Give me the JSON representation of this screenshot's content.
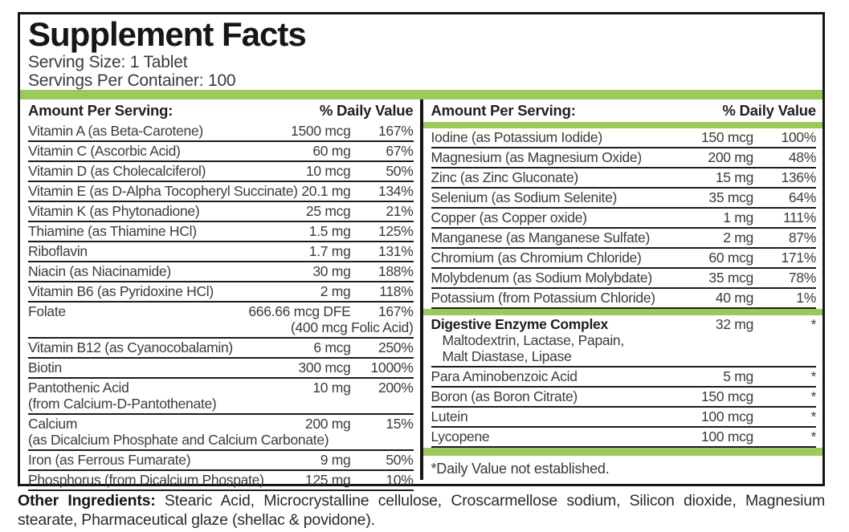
{
  "title": "Supplement Facts",
  "serving": {
    "size": "Serving Size: 1 Tablet",
    "per_container": "Servings Per Container: 100"
  },
  "table": {
    "left_header": {
      "amount": "Amount Per Serving:",
      "dv": "% Daily Value"
    },
    "right_header": {
      "amount": "Amount Per Serving:",
      "dv": "% Daily Value"
    },
    "left_rows": [
      {
        "name": "Vitamin A (as Beta-Carotene)",
        "amount": "1500 mcg",
        "dv": "167%"
      },
      {
        "name": "Vitamin C (Ascorbic Acid)",
        "amount": "60 mg",
        "dv": "67%"
      },
      {
        "name": "Vitamin D (as Cholecalciferol)",
        "amount": "10 mcg",
        "dv": "50%"
      },
      {
        "name": "Vitamin E (as D-Alpha Tocopheryl Succinate)",
        "amount": "20.1 mg",
        "dv": "134%"
      },
      {
        "name": "Vitamin K (as Phytonadione)",
        "amount": "25 mcg",
        "dv": "21%"
      },
      {
        "name": "Thiamine (as Thiamine HCl)",
        "amount": "1.5 mg",
        "dv": "125%"
      },
      {
        "name": "Riboflavin",
        "amount": "1.7 mg",
        "dv": "131%"
      },
      {
        "name": "Niacin (as Niacinamide)",
        "amount": "30 mg",
        "dv": "188%"
      },
      {
        "name": "Vitamin B6 (as Pyridoxine HCl)",
        "amount": "2 mg",
        "dv": "118%"
      },
      {
        "name": "Folate",
        "amount": "666.66 mcg DFE",
        "dv": "167%",
        "amount2": "(400 mcg Folic Acid)"
      },
      {
        "name": "Vitamin B12 (as Cyanocobalamin)",
        "amount": "6 mcg",
        "dv": "250%"
      },
      {
        "name": "Biotin",
        "amount": "300 mcg",
        "dv": "1000%"
      },
      {
        "name": "Pantothenic Acid",
        "amount": "10 mg",
        "dv": "200%",
        "name2": "(from Calcium-D-Pantothenate)"
      },
      {
        "name": "Calcium",
        "amount": "200 mg",
        "dv": "15%",
        "name2": "(as Dicalcium Phosphate and Calcium Carbonate)"
      },
      {
        "name": "Iron (as Ferrous Fumarate)",
        "amount": "9 mg",
        "dv": "50%"
      },
      {
        "name": "Phosphorus (from Dicalcium Phospate)",
        "amount": "125 mg",
        "dv": "10%"
      }
    ],
    "right_rows": [
      {
        "name": "Iodine (as Potassium Iodide)",
        "amount": "150 mcg",
        "dv": "100%"
      },
      {
        "name": "Magnesium (as Magnesium Oxide)",
        "amount": "200 mg",
        "dv": "48%"
      },
      {
        "name": "Zinc (as Zinc Gluconate)",
        "amount": "15 mg",
        "dv": "136%"
      },
      {
        "name": "Selenium (as Sodium Selenite)",
        "amount": "35 mcg",
        "dv": "64%"
      },
      {
        "name": "Copper (as Copper oxide)",
        "amount": "1 mg",
        "dv": "111%"
      },
      {
        "name": "Manganese (as Manganese Sulfate)",
        "amount": "2 mg",
        "dv": "87%"
      },
      {
        "name": "Chromium (as Chromium Chloride)",
        "amount": "60 mcg",
        "dv": "171%"
      },
      {
        "name": "Molybdenum (as Sodium Molybdate)",
        "amount": "35 mcg",
        "dv": "78%"
      },
      {
        "name": "Potassium (from Potassium Chloride)",
        "amount": "40 mg",
        "dv": "1%"
      }
    ],
    "right_rows2": [
      {
        "name": "Digestive Enzyme Complex",
        "amount": "32 mg",
        "dv": "*",
        "bold": true,
        "sub": [
          "Maltodextrin, Lactase, Papain,",
          "Malt Diastase, Lipase"
        ]
      },
      {
        "name": "Para Aminobenzoic Acid",
        "amount": "5 mg",
        "dv": "*"
      },
      {
        "name": "Boron (as Boron Citrate)",
        "amount": "150 mcg",
        "dv": "*"
      },
      {
        "name": "Lutein",
        "amount": "100 mcg",
        "dv": "*"
      },
      {
        "name": "Lycopene",
        "amount": "100 mcg",
        "dv": "*"
      }
    ],
    "footnote": "*Daily Value not established."
  },
  "other_ingredients": {
    "label": "Other Ingredients:",
    "text": " Stearic Acid, Microcrystalline cellulose, Croscarmellose sodium, Silicon dioxide, Magnesium stearate, Pharmaceutical glaze (shellac & povidone)."
  },
  "colors": {
    "accent_green": "#9cca5a",
    "line_black": "#1c1c1c"
  }
}
